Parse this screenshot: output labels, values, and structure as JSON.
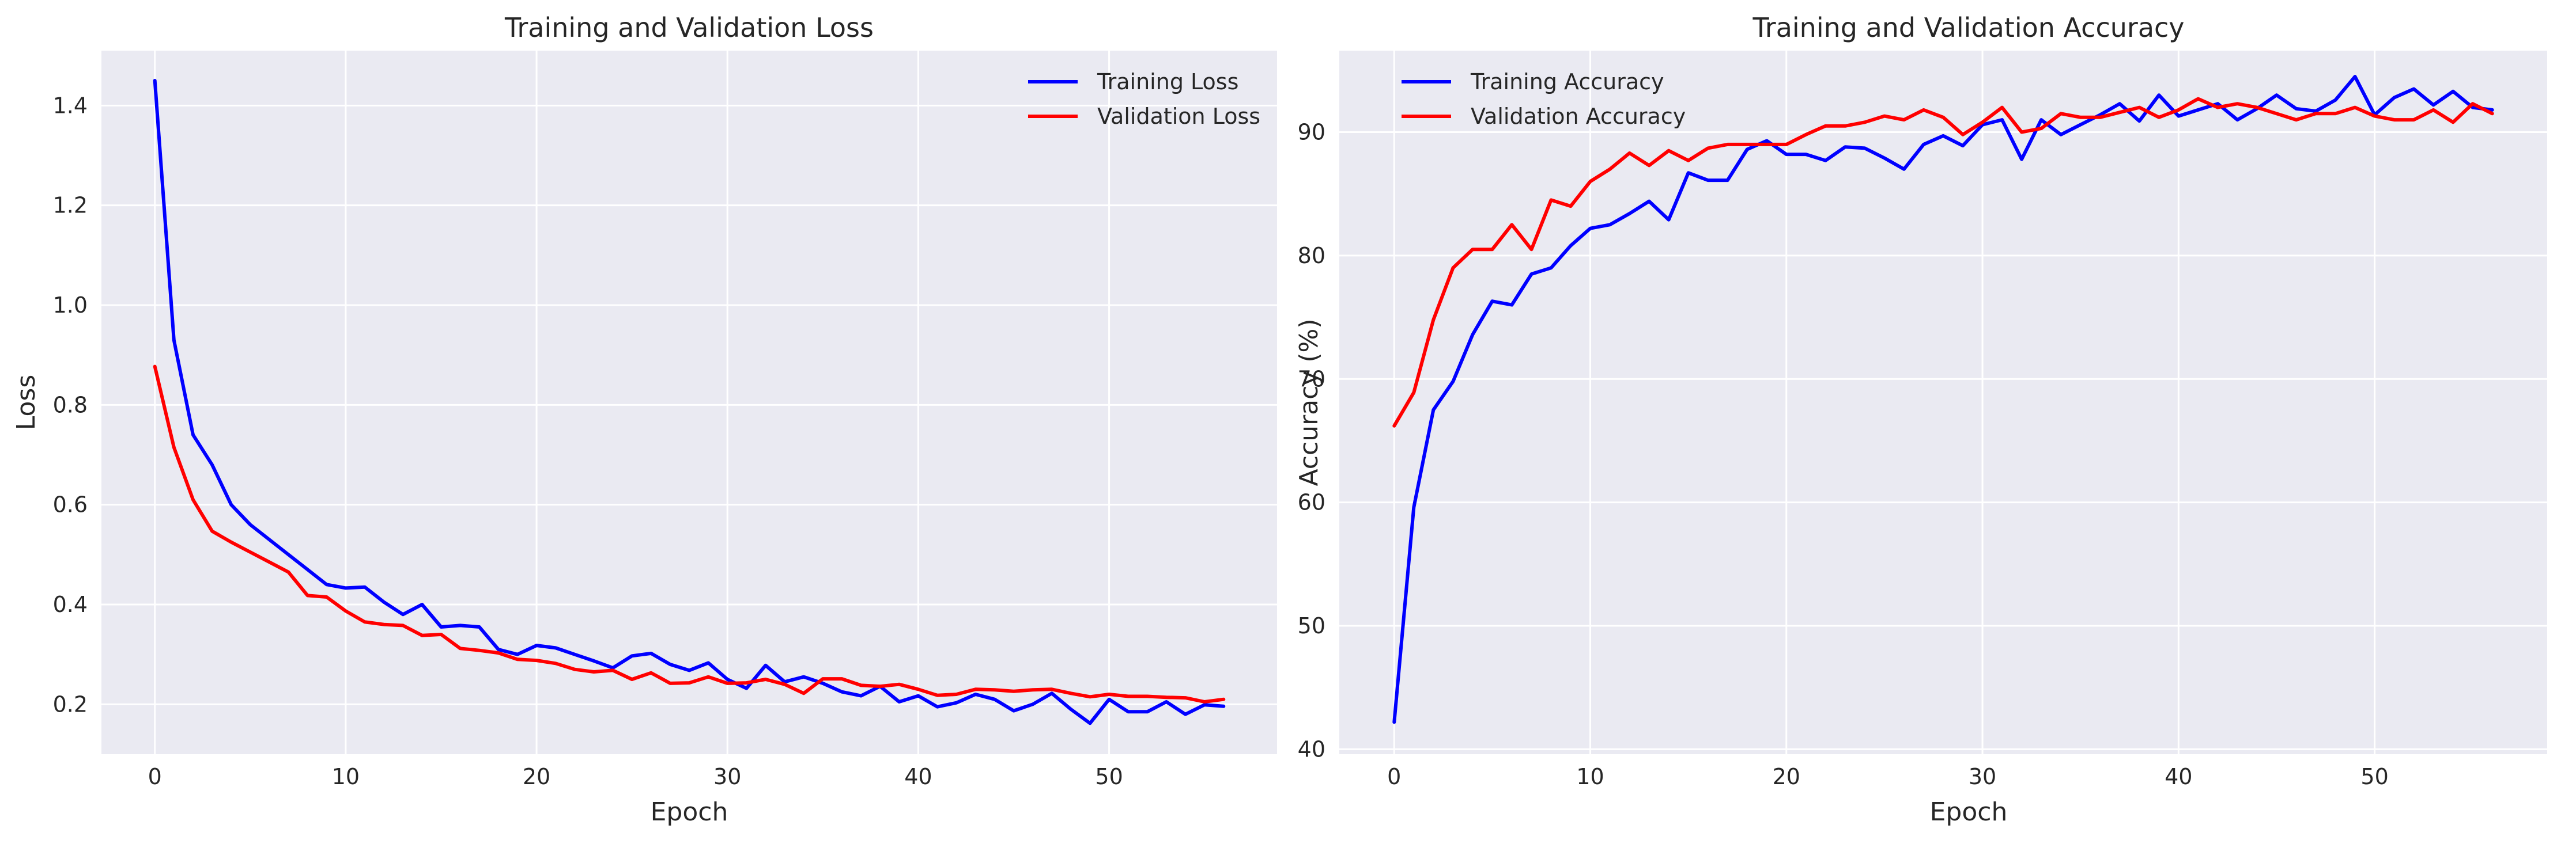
{
  "charts": [
    {
      "type": "line",
      "title": "Training and Validation Loss",
      "xlabel": "Epoch",
      "ylabel": "Loss",
      "xlim": [
        -2.8,
        58.8
      ],
      "ylim": [
        0.1,
        1.51
      ],
      "xticks": [
        0,
        10,
        20,
        30,
        40,
        50
      ],
      "yticks": [
        0.2,
        0.4,
        0.6,
        0.8,
        1.0,
        1.2,
        1.4
      ],
      "ytick_labels": [
        "0.2",
        "0.4",
        "0.6",
        "0.8",
        "1.0",
        "1.2",
        "1.4"
      ],
      "grid": true,
      "legend_position": "upper right",
      "x": [
        0,
        1,
        2,
        3,
        4,
        5,
        6,
        7,
        8,
        9,
        10,
        11,
        12,
        13,
        14,
        15,
        16,
        17,
        18,
        19,
        20,
        21,
        22,
        23,
        24,
        25,
        26,
        27,
        28,
        29,
        30,
        31,
        32,
        33,
        34,
        35,
        36,
        37,
        38,
        39,
        40,
        41,
        42,
        43,
        44,
        45,
        46,
        47,
        48,
        49,
        50,
        51,
        52,
        53,
        54,
        55,
        56
      ],
      "series": [
        {
          "name": "Training Loss",
          "color": "#0000ff",
          "values": [
            1.45,
            0.93,
            0.74,
            0.68,
            0.6,
            0.56,
            0.53,
            0.5,
            0.47,
            0.44,
            0.433,
            0.435,
            0.405,
            0.38,
            0.4,
            0.355,
            0.358,
            0.355,
            0.31,
            0.3,
            0.318,
            0.313,
            0.3,
            0.287,
            0.273,
            0.297,
            0.302,
            0.28,
            0.268,
            0.283,
            0.25,
            0.232,
            0.278,
            0.245,
            0.255,
            0.242,
            0.225,
            0.217,
            0.236,
            0.205,
            0.217,
            0.195,
            0.203,
            0.22,
            0.21,
            0.187,
            0.2,
            0.222,
            0.19,
            0.162,
            0.21,
            0.185,
            0.185,
            0.205,
            0.18,
            0.199,
            0.196
          ]
        },
        {
          "name": "Validation Loss",
          "color": "#ff0000",
          "values": [
            0.877,
            0.715,
            0.61,
            0.547,
            0.525,
            0.505,
            0.485,
            0.465,
            0.418,
            0.415,
            0.387,
            0.365,
            0.36,
            0.358,
            0.338,
            0.34,
            0.312,
            0.308,
            0.303,
            0.29,
            0.288,
            0.282,
            0.27,
            0.265,
            0.268,
            0.25,
            0.263,
            0.242,
            0.243,
            0.255,
            0.242,
            0.243,
            0.25,
            0.24,
            0.222,
            0.251,
            0.251,
            0.238,
            0.236,
            0.24,
            0.23,
            0.218,
            0.22,
            0.23,
            0.229,
            0.226,
            0.229,
            0.23,
            0.222,
            0.215,
            0.22,
            0.216,
            0.216,
            0.214,
            0.213,
            0.205,
            0.21
          ]
        }
      ]
    },
    {
      "type": "line",
      "title": "Training and Validation Accuracy",
      "xlabel": "Epoch",
      "ylabel": "Accuracy (%)",
      "xlim": [
        -2.8,
        58.8
      ],
      "ylim": [
        39.6,
        96.6
      ],
      "xticks": [
        0,
        10,
        20,
        30,
        40,
        50
      ],
      "yticks": [
        40,
        50,
        60,
        70,
        80,
        90
      ],
      "ytick_labels": [
        "40",
        "50",
        "60",
        "70",
        "80",
        "90"
      ],
      "grid": true,
      "legend_position": "upper left",
      "x": [
        0,
        1,
        2,
        3,
        4,
        5,
        6,
        7,
        8,
        9,
        10,
        11,
        12,
        13,
        14,
        15,
        16,
        17,
        18,
        19,
        20,
        21,
        22,
        23,
        24,
        25,
        26,
        27,
        28,
        29,
        30,
        31,
        32,
        33,
        34,
        35,
        36,
        37,
        38,
        39,
        40,
        41,
        42,
        43,
        44,
        45,
        46,
        47,
        48,
        49,
        50,
        51,
        52,
        53,
        54,
        55,
        56
      ],
      "series": [
        {
          "name": "Training Accuracy",
          "color": "#0000ff",
          "values": [
            42.2,
            59.6,
            67.5,
            69.8,
            73.6,
            76.3,
            76.0,
            78.5,
            79.0,
            80.8,
            82.2,
            82.5,
            83.4,
            84.4,
            82.9,
            86.7,
            86.1,
            86.1,
            88.6,
            89.3,
            88.2,
            88.2,
            87.7,
            88.8,
            88.7,
            87.9,
            87.0,
            89.0,
            89.7,
            88.9,
            90.6,
            91.0,
            87.8,
            91.0,
            89.8,
            90.6,
            91.4,
            92.3,
            90.9,
            93.0,
            91.3,
            91.8,
            92.3,
            91.0,
            91.9,
            93.0,
            91.9,
            91.7,
            92.6,
            94.5,
            91.4,
            92.8,
            93.5,
            92.2,
            93.3,
            92.0,
            91.8
          ]
        },
        {
          "name": "Validation Accuracy",
          "color": "#ff0000",
          "values": [
            66.2,
            68.9,
            74.8,
            79.0,
            80.5,
            80.5,
            82.5,
            80.5,
            84.5,
            84.0,
            86.0,
            87.0,
            88.3,
            87.3,
            88.5,
            87.7,
            88.7,
            89.0,
            89.0,
            89.0,
            89.0,
            89.8,
            90.5,
            90.5,
            90.8,
            91.3,
            91.0,
            91.8,
            91.2,
            89.8,
            90.8,
            92.0,
            90.0,
            90.3,
            91.5,
            91.2,
            91.2,
            91.6,
            92.0,
            91.2,
            91.8,
            92.7,
            92.0,
            92.3,
            92.0,
            91.5,
            91.0,
            91.5,
            91.5,
            92.0,
            91.3,
            91.0,
            91.0,
            91.8,
            90.8,
            92.3,
            91.5
          ]
        }
      ]
    }
  ]
}
